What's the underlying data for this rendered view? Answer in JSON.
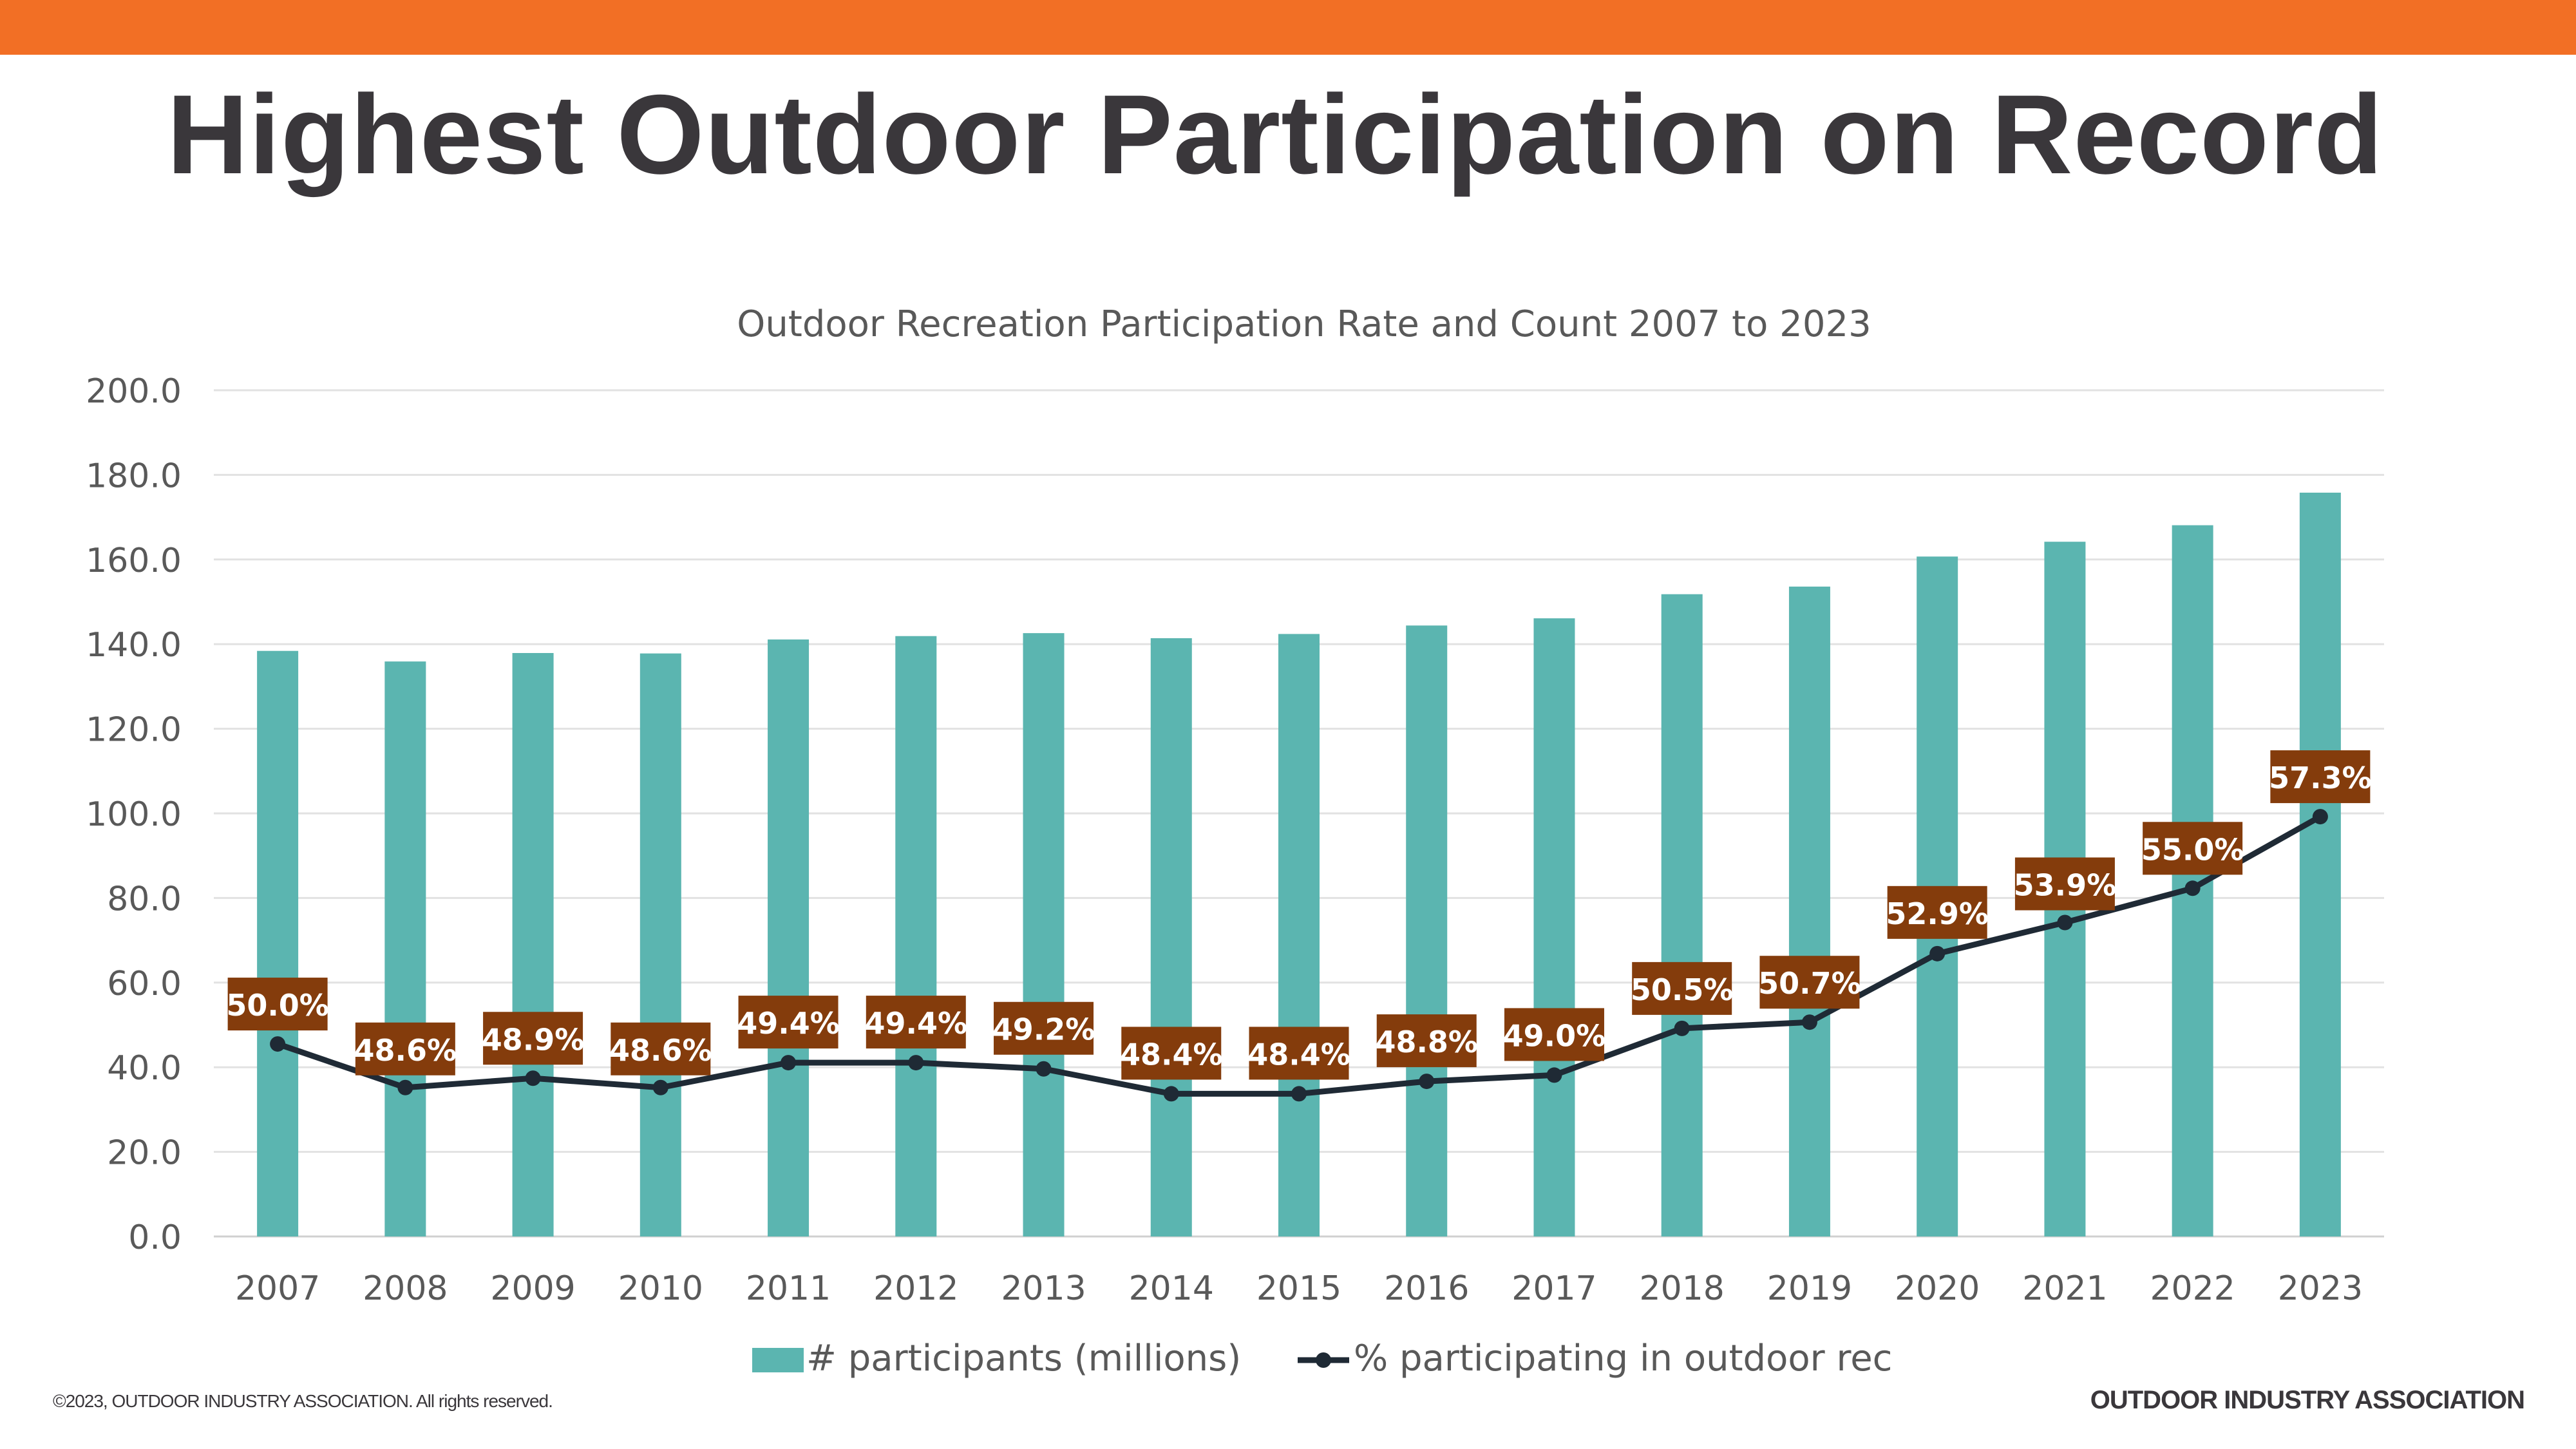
{
  "page": {
    "title": "Highest Outdoor Participation on Record",
    "copyright": "©2023, OUTDOOR INDUSTRY ASSOCIATION. All rights reserved.",
    "brand": "OUTDOOR INDUSTRY ASSOCIATION",
    "accent_color": "#f26f25",
    "title_color": "#3a373b"
  },
  "chart_data": {
    "type": "bar",
    "title": "Outdoor Recreation Participation Rate and Count 2007 to 2023",
    "categories": [
      "2007",
      "2008",
      "2009",
      "2010",
      "2011",
      "2012",
      "2013",
      "2014",
      "2015",
      "2016",
      "2017",
      "2018",
      "2019",
      "2020",
      "2021",
      "2022",
      "2023"
    ],
    "ylim": [
      0,
      200
    ],
    "yticks": [
      "0.0",
      "20.0",
      "40.0",
      "60.0",
      "80.0",
      "100.0",
      "120.0",
      "140.0",
      "160.0",
      "180.0",
      "200.0"
    ],
    "grid": true,
    "legend_position": "bottom",
    "series": [
      {
        "name": "# participants (millions)",
        "kind": "bar",
        "color": "#5bb5b0",
        "values": [
          138.4,
          135.9,
          137.9,
          137.8,
          141.1,
          141.9,
          142.6,
          141.4,
          142.4,
          144.4,
          146.1,
          151.8,
          153.6,
          160.7,
          164.2,
          168.1,
          175.8
        ]
      },
      {
        "name": "% participating in outdoor rec",
        "kind": "line",
        "color": "#1f2a35",
        "values": [
          50.0,
          48.6,
          48.9,
          48.6,
          49.4,
          49.4,
          49.2,
          48.4,
          48.4,
          48.8,
          49.0,
          50.5,
          50.7,
          52.9,
          53.9,
          55.0,
          57.3
        ],
        "labels": [
          "50.0%",
          "48.6%",
          "48.9%",
          "48.6%",
          "49.4%",
          "49.4%",
          "49.2%",
          "48.4%",
          "48.4%",
          "48.8%",
          "49.0%",
          "50.5%",
          "50.7%",
          "52.9%",
          "53.9%",
          "55.0%",
          "57.3%"
        ],
        "label_color": "#843c0c"
      }
    ]
  }
}
